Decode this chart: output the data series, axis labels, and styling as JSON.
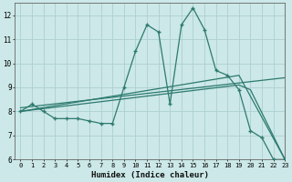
{
  "xlabel": "Humidex (Indice chaleur)",
  "ylabel": "",
  "bg_color": "#cce8e8",
  "grid_color": "#aed0d0",
  "line_color": "#2d7a6e",
  "xlim": [
    -0.5,
    23
  ],
  "ylim": [
    6,
    12.5
  ],
  "yticks": [
    6,
    7,
    8,
    9,
    10,
    11,
    12
  ],
  "xticks": [
    0,
    1,
    2,
    3,
    4,
    5,
    6,
    7,
    8,
    9,
    10,
    11,
    12,
    13,
    14,
    15,
    16,
    17,
    18,
    19,
    20,
    21,
    22,
    23
  ],
  "line1_x": [
    0,
    1,
    2,
    3,
    4,
    5,
    6,
    7,
    8,
    9,
    10,
    11,
    12,
    13,
    14,
    15,
    16,
    17,
    18,
    19,
    20,
    21,
    22,
    23
  ],
  "line1_y": [
    8.0,
    8.3,
    8.0,
    7.7,
    7.7,
    7.7,
    7.6,
    7.5,
    7.5,
    9.0,
    10.5,
    11.6,
    11.3,
    8.3,
    11.6,
    12.3,
    11.4,
    9.7,
    9.5,
    8.9,
    7.2,
    6.9,
    6.0,
    6.0
  ],
  "line2_x": [
    0,
    19,
    20,
    23
  ],
  "line2_y": [
    8.0,
    9.1,
    8.9,
    6.0
  ],
  "line3_x": [
    0,
    19,
    23
  ],
  "line3_y": [
    8.0,
    9.5,
    6.0
  ],
  "line4_x": [
    0,
    23
  ],
  "line4_y": [
    8.15,
    9.4
  ]
}
